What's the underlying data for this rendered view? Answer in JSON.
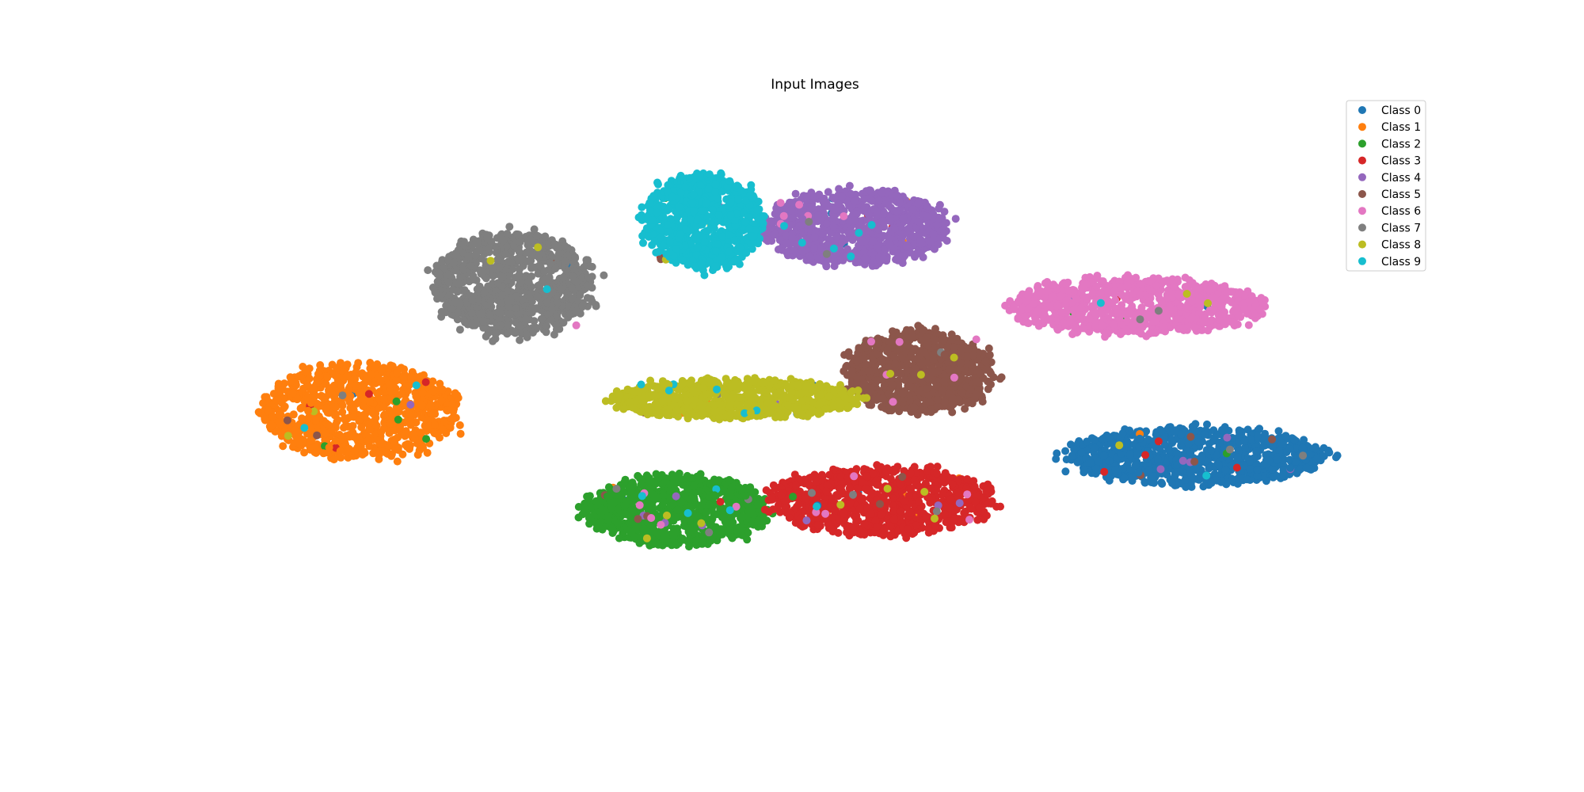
{
  "chart_data": {
    "type": "scatter",
    "title": "Input Images",
    "xlabel": "",
    "ylabel": "",
    "axes_visible": false,
    "grid": false,
    "legend_position": "top-right",
    "xlim": [
      -100,
      100
    ],
    "ylim": [
      -100,
      100
    ],
    "series": [
      {
        "name": "Class 0",
        "color": "#1f77b4",
        "clusters": [
          {
            "cx": 64,
            "cy": -20,
            "rx": 20,
            "ry": 9,
            "n": 900
          }
        ]
      },
      {
        "name": "Class 1",
        "color": "#ff7f0e",
        "clusters": [
          {
            "cx": -68,
            "cy": -5,
            "rx": 15,
            "ry": 15,
            "n": 900
          }
        ]
      },
      {
        "name": "Class 2",
        "color": "#2ca02c",
        "clusters": [
          {
            "cx": -18,
            "cy": -38,
            "rx": 14,
            "ry": 11,
            "n": 900
          }
        ]
      },
      {
        "name": "Class 3",
        "color": "#d62728",
        "clusters": [
          {
            "cx": 14,
            "cy": -35,
            "rx": 17,
            "ry": 11,
            "n": 900
          }
        ]
      },
      {
        "name": "Class 4",
        "color": "#9467bd",
        "clusters": [
          {
            "cx": 10,
            "cy": 56,
            "rx": 14,
            "ry": 12,
            "n": 900
          }
        ]
      },
      {
        "name": "Class 5",
        "color": "#8c564b",
        "clusters": [
          {
            "cx": 20,
            "cy": 8,
            "rx": 11,
            "ry": 13,
            "n": 900
          }
        ]
      },
      {
        "name": "Class 6",
        "color": "#e377c2",
        "clusters": [
          {
            "cx": 54,
            "cy": 30,
            "rx": 19,
            "ry": 9,
            "n": 900
          }
        ]
      },
      {
        "name": "Class 7",
        "color": "#7f7f7f",
        "clusters": [
          {
            "cx": -44,
            "cy": 37,
            "rx": 12,
            "ry": 17,
            "n": 900
          }
        ]
      },
      {
        "name": "Class 8",
        "color": "#bcbd22",
        "clusters": [
          {
            "cx": -9,
            "cy": -1,
            "rx": 19,
            "ry": 6,
            "n": 900
          }
        ]
      },
      {
        "name": "Class 9",
        "color": "#17becf",
        "clusters": [
          {
            "cx": -14,
            "cy": 58,
            "rx": 9,
            "ry": 15,
            "n": 900
          }
        ]
      }
    ]
  }
}
